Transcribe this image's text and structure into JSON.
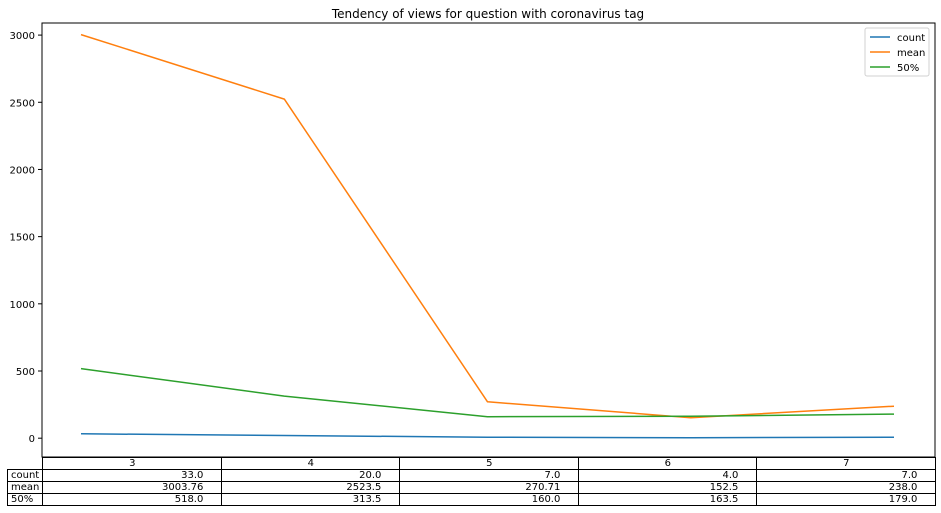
{
  "chart_data": {
    "type": "line",
    "title": "Tendency of views for question with coronavirus tag",
    "xlabel": "",
    "ylabel": "",
    "categories": [
      "3",
      "4",
      "5",
      "6",
      "7"
    ],
    "ylim": [
      -140,
      3090
    ],
    "yticks": [
      0,
      500,
      1000,
      1500,
      2000,
      2500,
      3000
    ],
    "legend_position": "top-right",
    "grid": false,
    "series": [
      {
        "name": "count",
        "color": "#1f77b4",
        "values": [
          33.0,
          20.0,
          7.0,
          4.0,
          7.0
        ]
      },
      {
        "name": "mean",
        "color": "#ff7f0e",
        "values": [
          3003.76,
          2523.5,
          270.71,
          152.5,
          238.0
        ]
      },
      {
        "name": "50%",
        "color": "#2ca02c",
        "values": [
          518.0,
          313.5,
          160.0,
          163.5,
          179.0
        ]
      }
    ]
  },
  "table": {
    "columns": [
      "3",
      "4",
      "5",
      "6",
      "7"
    ],
    "rows": [
      {
        "label": "count",
        "values": [
          "33.0",
          "20.0",
          "7.0",
          "4.0",
          "7.0"
        ]
      },
      {
        "label": "mean",
        "values": [
          "3003.76",
          "2523.5",
          "270.71",
          "152.5",
          "238.0"
        ]
      },
      {
        "label": "50%",
        "values": [
          "518.0",
          "313.5",
          "160.0",
          "163.5",
          "179.0"
        ]
      }
    ]
  }
}
